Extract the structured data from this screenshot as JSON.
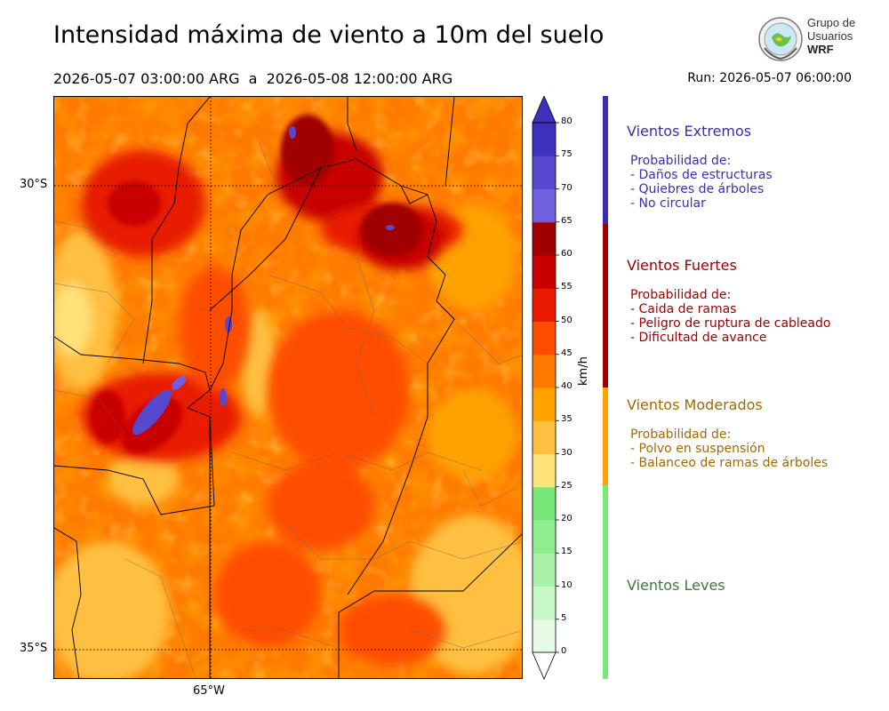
{
  "header": {
    "title": "Intensidad máxima de viento a 10m del suelo",
    "period": "2026-05-07 03:00:00 ARG  a  2026-05-08 12:00:00 ARG",
    "run": "Run: 2026-05-07 06:00:00"
  },
  "logo": {
    "line1": "Grupo de",
    "line2": "Usuarios",
    "line3": "WRF"
  },
  "map": {
    "lat_labels": [
      "30°S",
      "35°S"
    ],
    "lon_labels": [
      "65°W"
    ]
  },
  "colorbar": {
    "unit": "km/h",
    "ticks": [
      "0",
      "5",
      "10",
      "15",
      "20",
      "25",
      "30",
      "35",
      "40",
      "45",
      "50",
      "55",
      "60",
      "65",
      "70",
      "75",
      "80"
    ],
    "colors": [
      "#e6fbe6",
      "#c8f7c8",
      "#aaf2aa",
      "#8eee8e",
      "#78e878",
      "#ffe27a",
      "#ffbf40",
      "#ffa200",
      "#ff7a00",
      "#ff4d00",
      "#e81b00",
      "#c80000",
      "#a00000",
      "#7060e0",
      "#5848d0",
      "#4030c0"
    ],
    "colors_meaning": "bins 0-5 … 75-80"
  },
  "categories": [
    {
      "name": "Vientos Extremos",
      "color": "#3a2db0",
      "bar_color": "#3a2db0",
      "items": [
        "Probabilidad de:",
        "- Daños de estructuras",
        "- Quiebres de árboles",
        "- No circular"
      ]
    },
    {
      "name": "Vientos Fuertes",
      "color": "#a00000",
      "bar_color": "#a00000",
      "items": [
        "Probabilidad de:",
        "- Caida de ramas",
        "- Peligro de ruptura de cableado",
        "- Dificultad de avance"
      ]
    },
    {
      "name": "Vientos Moderados",
      "color": "#a06a00",
      "bar_color": "#ffa200",
      "items": [
        "Probabilidad de:",
        "- Polvo en suspensión",
        "- Balanceo de ramas de árboles"
      ]
    },
    {
      "name": "Vientos Leves",
      "color": "#3a7a3a",
      "bar_color": "#78e878",
      "items": []
    }
  ]
}
